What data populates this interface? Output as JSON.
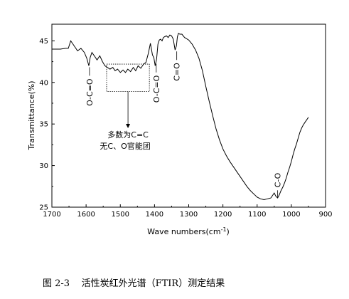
{
  "chart_data": {
    "type": "line",
    "xlabel": "Wave numbers(cm",
    "xlabel_sup": "-1",
    "xlabel_end": ")",
    "ylabel": "Transmittance(%)",
    "xlim": [
      1700,
      900
    ],
    "ylim": [
      25,
      47
    ],
    "x_ticks": [
      "1700",
      "1600",
      "1500",
      "1400",
      "1300",
      "1200",
      "1100",
      "1000",
      "900"
    ],
    "y_ticks": [
      "25",
      "30",
      "35",
      "40",
      "45"
    ],
    "series": [
      {
        "x": [
          1700,
          1675,
          1660,
          1652,
          1645,
          1635,
          1625,
          1615,
          1605,
          1598,
          1592,
          1588,
          1583,
          1576,
          1568,
          1560,
          1552,
          1545,
          1538,
          1530,
          1522,
          1515,
          1508,
          1500,
          1492,
          1485,
          1478,
          1470,
          1462,
          1455,
          1448,
          1440,
          1432,
          1425,
          1418,
          1412,
          1406,
          1402,
          1398,
          1394,
          1390,
          1386,
          1382,
          1378,
          1374,
          1370,
          1365,
          1360,
          1355,
          1350,
          1345,
          1340,
          1336,
          1333,
          1330,
          1326,
          1320,
          1312,
          1300,
          1290,
          1280,
          1270,
          1260,
          1250,
          1240,
          1230,
          1220,
          1210,
          1200,
          1190,
          1180,
          1170,
          1160,
          1150,
          1140,
          1130,
          1120,
          1110,
          1100,
          1090,
          1080,
          1070,
          1060,
          1050,
          1045,
          1040,
          1035,
          1030,
          1025,
          1020,
          1015,
          1010,
          1005,
          1000,
          995,
          990,
          985,
          980,
          975,
          970,
          965,
          960,
          955,
          950
        ],
        "y": [
          44.0,
          44.0,
          44.1,
          44.1,
          45.0,
          44.4,
          43.8,
          44.1,
          43.6,
          42.9,
          42.0,
          43.0,
          43.6,
          43.2,
          42.7,
          43.2,
          42.5,
          42.0,
          41.8,
          41.6,
          41.8,
          41.4,
          41.6,
          41.2,
          41.5,
          41.2,
          41.6,
          41.3,
          41.8,
          41.4,
          42.0,
          41.7,
          42.2,
          42.4,
          43.5,
          44.7,
          43.3,
          43.0,
          42.0,
          42.8,
          44.6,
          45.1,
          45.2,
          45.0,
          45.4,
          45.5,
          45.6,
          45.4,
          45.7,
          45.6,
          45.2,
          43.9,
          44.4,
          45.5,
          45.9,
          45.8,
          45.8,
          45.4,
          45.1,
          44.6,
          43.9,
          42.9,
          41.4,
          39.5,
          37.7,
          36.0,
          34.4,
          33.1,
          32.0,
          31.2,
          30.5,
          29.9,
          29.3,
          28.7,
          28.1,
          27.5,
          27.0,
          26.6,
          26.2,
          26.0,
          25.9,
          26.0,
          26.1,
          26.7,
          26.3,
          26.1,
          26.5,
          27.0,
          27.4,
          27.9,
          28.5,
          29.2,
          29.8,
          30.5,
          31.3,
          32.0,
          32.6,
          33.3,
          34.0,
          34.5,
          34.9,
          35.2,
          35.5,
          35.8
        ]
      }
    ],
    "peaks": [
      {
        "x": 1590,
        "y": 42.0,
        "label": "O-C=O"
      },
      {
        "x": 1395,
        "y": 42.4,
        "label": "O-C=O"
      },
      {
        "x": 1335,
        "y": 43.9,
        "label": "C=O"
      },
      {
        "x": 1040,
        "y": 26.0,
        "label": "C-O"
      }
    ],
    "region": {
      "x_start": 1540,
      "x_end": 1415,
      "y_top": 42.2,
      "y_bottom": 38.9,
      "label_line1": "多数为C=C",
      "label_line2": "无C、O官能团"
    },
    "curve_color": "#000000"
  },
  "caption": "图 2-3    活性炭红外光谱（FTIR）测定结果"
}
